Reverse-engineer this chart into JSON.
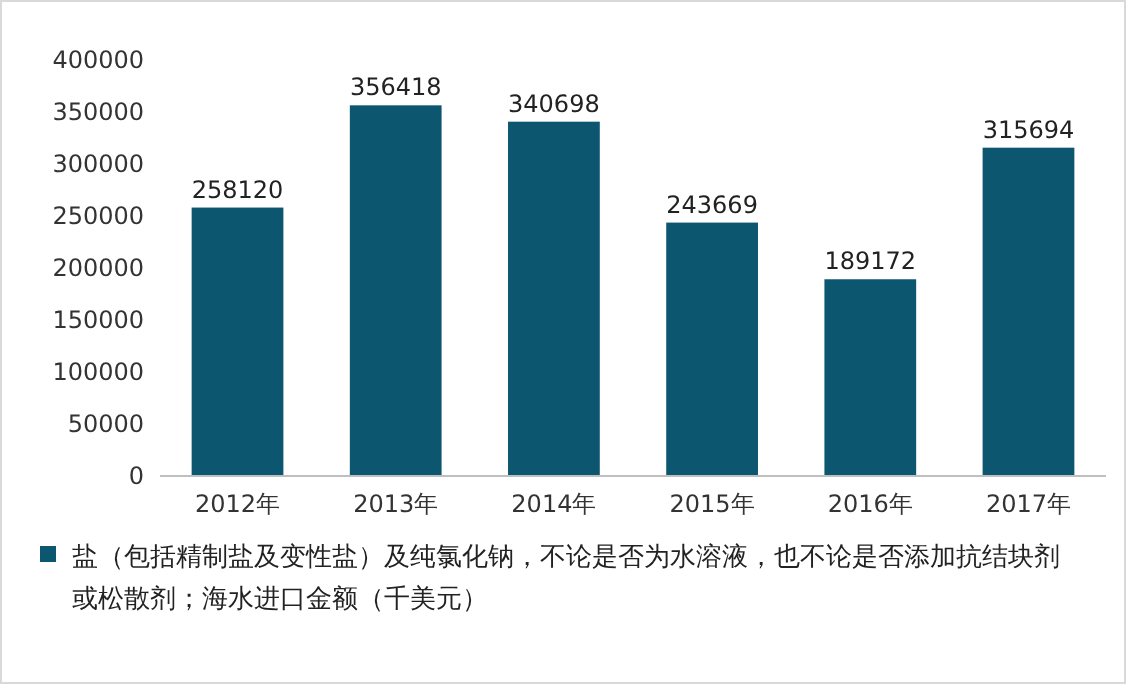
{
  "chart_data": {
    "type": "bar",
    "categories": [
      "2012年",
      "2013年",
      "2014年",
      "2015年",
      "2016年",
      "2017年"
    ],
    "series": [
      {
        "name": "盐（包括精制盐及变性盐）及纯氯化钠，不论是否为水溶液，也不论是否添加抗结块剂或松散剂；海水进口金额（千美元）",
        "color": "#0d5670",
        "values": [
          258120,
          356418,
          340698,
          243669,
          189172,
          315694
        ]
      }
    ],
    "ylim": [
      0,
      400000
    ],
    "yticks": [
      0,
      50000,
      100000,
      150000,
      200000,
      250000,
      300000,
      350000,
      400000
    ],
    "data_labels": true,
    "legend": "bottom",
    "grid": false
  }
}
